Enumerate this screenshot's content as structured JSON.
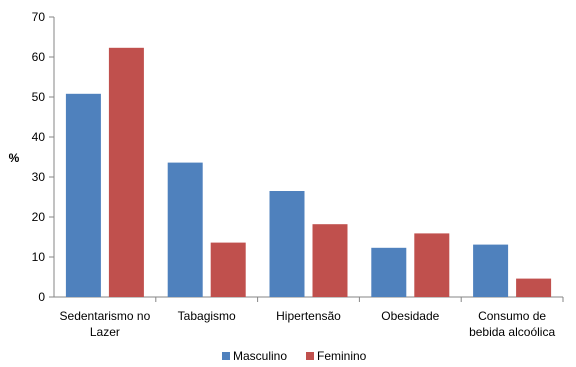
{
  "chart_data": {
    "type": "bar",
    "ylabel": "%",
    "ylim": [
      0,
      70
    ],
    "yticks": [
      "0",
      "10",
      "20",
      "30",
      "40",
      "50",
      "60",
      "70"
    ],
    "categories": [
      [
        "Sedentarismo no",
        "Lazer"
      ],
      [
        "Tabagismo"
      ],
      [
        "Hipertensão"
      ],
      [
        "Obesidade"
      ],
      [
        "Consumo de",
        "bebida alcoólica"
      ]
    ],
    "series": [
      {
        "name": "Masculino",
        "color": "#4F81BD",
        "values": [
          50.8,
          33.6,
          26.5,
          12.3,
          13.1
        ]
      },
      {
        "name": "Feminino",
        "color": "#C0504D",
        "values": [
          62.3,
          13.6,
          18.2,
          15.9,
          4.6
        ]
      }
    ],
    "legend_position": "bottom",
    "grid": false
  }
}
